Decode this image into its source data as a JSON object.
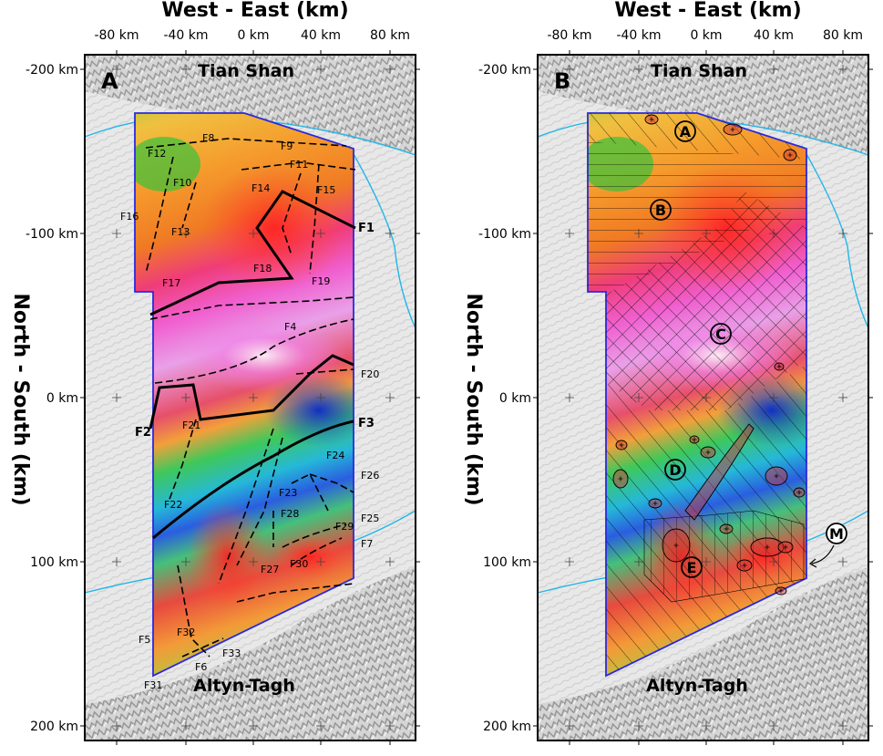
{
  "axes": {
    "x_title": "West - East (km)",
    "y_title": "North - South (km)",
    "x_ticks": [
      "-80 km",
      "-40 km",
      "0 km",
      "40 km",
      "80 km"
    ],
    "y_ticks": [
      "-200 km",
      "-100 km",
      "0 km",
      "100 km",
      "200 km"
    ]
  },
  "panels": [
    {
      "letter": "A",
      "north_label": "Tian Shan",
      "south_label": "Altyn-Tagh"
    },
    {
      "letter": "B",
      "north_label": "Tian Shan",
      "south_label": "Altyn-Tagh"
    }
  ],
  "faults_major": [
    "F1",
    "F2",
    "F3"
  ],
  "faults_minor": [
    "F4",
    "F5",
    "F6",
    "F7",
    "F8",
    "F9",
    "F10",
    "F11",
    "F12",
    "F13",
    "F14",
    "F15",
    "F16",
    "F17",
    "F18",
    "F19",
    "F20",
    "F21",
    "F22",
    "F23",
    "F24",
    "F25",
    "F26",
    "F27",
    "F28",
    "F29",
    "F30",
    "F31",
    "F32",
    "F33"
  ],
  "zones": [
    "A",
    "B",
    "C",
    "D",
    "E",
    "M"
  ],
  "colors": {
    "frame": "#000000",
    "boundary": "#2a2adc",
    "river": "#22b7e8",
    "low_anomaly": "#1a3fd8",
    "high_anomaly": "#ff30c0"
  }
}
